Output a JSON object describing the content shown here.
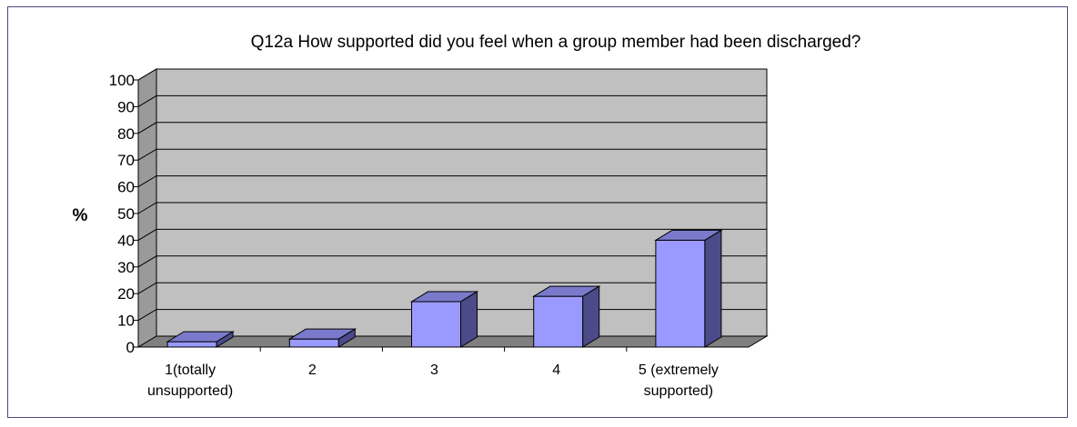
{
  "chart_data": {
    "type": "bar",
    "title": "Q12a How supported did you feel when a group member had been discharged?",
    "ylabel": "%",
    "xlabel": "",
    "ylim": [
      0,
      100
    ],
    "yticks": [
      0,
      10,
      20,
      30,
      40,
      50,
      60,
      70,
      80,
      90,
      100
    ],
    "categories": [
      "1(totally unsupported)",
      "2",
      "3",
      "4",
      "5 (extremely supported)"
    ],
    "category_lines": [
      [
        "1(totally",
        "unsupported)"
      ],
      [
        "2"
      ],
      [
        "3"
      ],
      [
        "4"
      ],
      [
        "5 (extremely",
        "supported)"
      ]
    ],
    "values": [
      2,
      3,
      17,
      19,
      40
    ],
    "grid": true,
    "legend": "none",
    "colors": {
      "bar_front": "#9999ff",
      "bar_top": "#7a7acc",
      "bar_side": "#4b4b8a",
      "back_wall": "#c0c0c0",
      "side_wall": "#9a9a9a",
      "floor": "#808080",
      "frame_border": "#4b4b7e"
    }
  }
}
